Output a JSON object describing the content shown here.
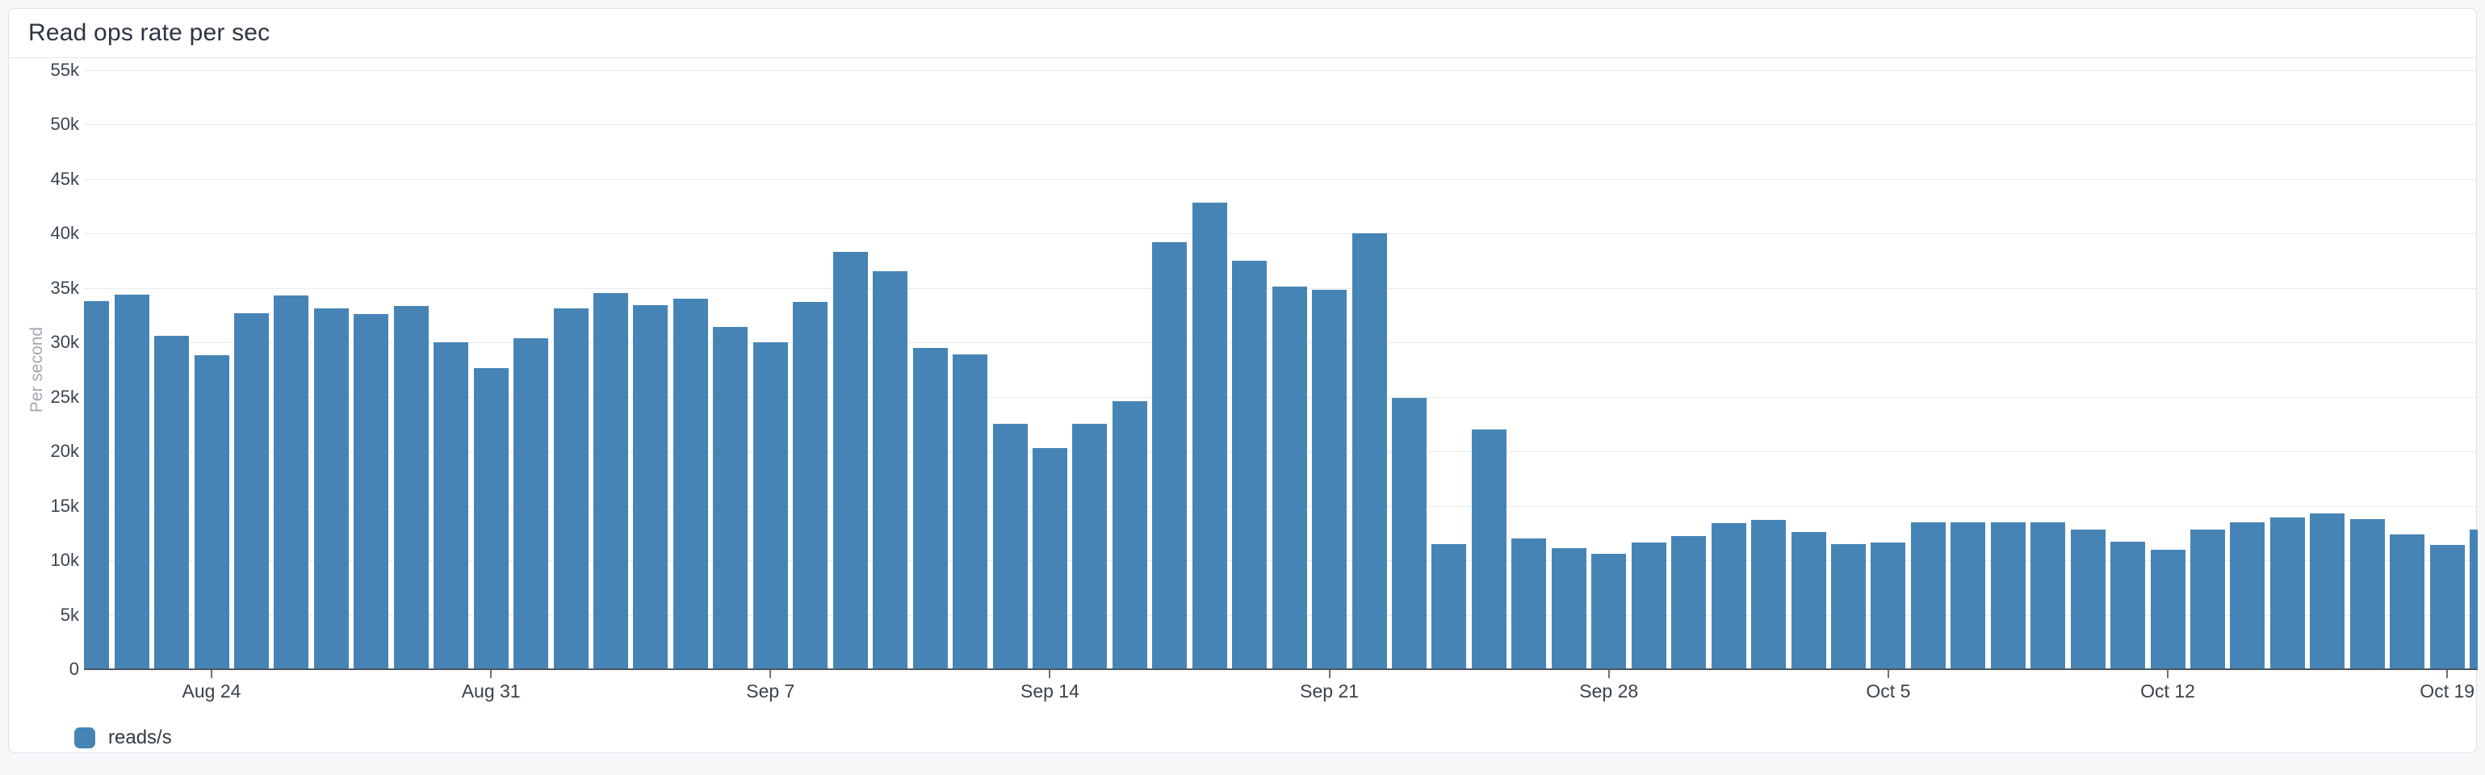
{
  "panel": {
    "title": "Read ops rate per sec"
  },
  "legend": {
    "series_label": "reads/s"
  },
  "colors": {
    "bar": "#4784b6",
    "panel_background": "#ffffff",
    "page_background": "#f6f7f9",
    "panel_border": "#dde1e7",
    "gridline": "#e9ebee",
    "axis_line": "#4d5560"
  },
  "chart_data": {
    "type": "bar",
    "title": "Read ops rate per sec",
    "ylabel": "Per second",
    "legend_entries": [
      "reads/s"
    ],
    "legend_position": "bottom-left",
    "grid": true,
    "ylim": [
      0,
      55000
    ],
    "y_tick_step": 5000,
    "y_tick_labels": [
      "0",
      "5k",
      "10k",
      "15k",
      "20k",
      "25k",
      "30k",
      "35k",
      "40k",
      "45k",
      "50k",
      "55k"
    ],
    "x_tick_labels": [
      {
        "label": "Aug 24",
        "day_index": 3
      },
      {
        "label": "Aug 31",
        "day_index": 10
      },
      {
        "label": "Sep 7",
        "day_index": 17
      },
      {
        "label": "Sep 14",
        "day_index": 24
      },
      {
        "label": "Sep 21",
        "day_index": 31
      },
      {
        "label": "Sep 28",
        "day_index": 38
      },
      {
        "label": "Oct 5",
        "day_index": 45
      },
      {
        "label": "Oct 12",
        "day_index": 52
      },
      {
        "label": "Oct 19",
        "day_index": 59
      }
    ],
    "categories": [
      "Aug 21",
      "Aug 22",
      "Aug 23",
      "Aug 24",
      "Aug 25",
      "Aug 26",
      "Aug 27",
      "Aug 28",
      "Aug 29",
      "Aug 30",
      "Aug 31",
      "Sep 1",
      "Sep 2",
      "Sep 3",
      "Sep 4",
      "Sep 5",
      "Sep 6",
      "Sep 7",
      "Sep 8",
      "Sep 9",
      "Sep 10",
      "Sep 11",
      "Sep 12",
      "Sep 13",
      "Sep 14",
      "Sep 15",
      "Sep 16",
      "Sep 17",
      "Sep 18",
      "Sep 19",
      "Sep 20",
      "Sep 21",
      "Sep 22",
      "Sep 23",
      "Sep 24",
      "Sep 25",
      "Sep 26",
      "Sep 27",
      "Sep 28",
      "Sep 29",
      "Sep 30",
      "Oct 1",
      "Oct 2",
      "Oct 3",
      "Oct 4",
      "Oct 5",
      "Oct 6",
      "Oct 7",
      "Oct 8",
      "Oct 9",
      "Oct 10",
      "Oct 11",
      "Oct 12",
      "Oct 13",
      "Oct 14",
      "Oct 15",
      "Oct 16",
      "Oct 17",
      "Oct 18",
      "Oct 19",
      "Oct 20"
    ],
    "values": [
      33800,
      34400,
      30600,
      28800,
      32700,
      34300,
      33100,
      32600,
      33300,
      30000,
      27600,
      30400,
      33100,
      34500,
      33400,
      34000,
      31400,
      30000,
      33700,
      38300,
      36500,
      29500,
      28900,
      22500,
      20300,
      22500,
      24600,
      39200,
      42800,
      37500,
      35100,
      34800,
      40000,
      24900,
      11500,
      22000,
      12000,
      11100,
      10600,
      11600,
      12200,
      13400,
      13700,
      12600,
      11500,
      11600,
      13500,
      13500,
      13500,
      13500,
      12800,
      11700,
      11000,
      12800,
      13500,
      13900,
      14300,
      13800,
      12400,
      11400,
      12800
    ],
    "notes": {
      "first_bar_clipped_left": true,
      "last_bar_clipped_right": true
    }
  }
}
